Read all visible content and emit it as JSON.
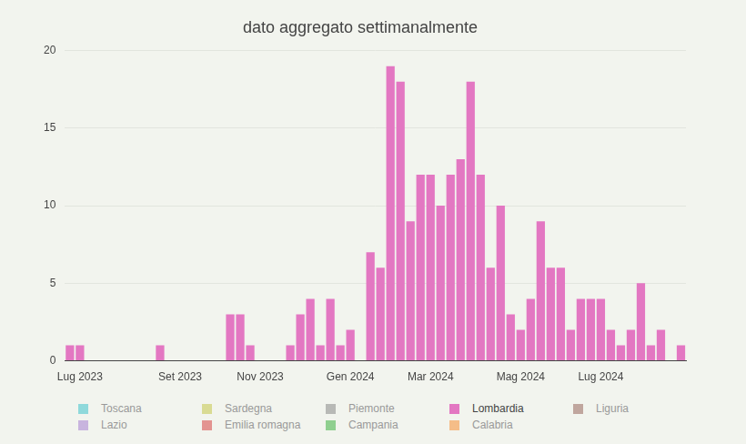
{
  "chart_data": {
    "type": "bar",
    "title": "dato aggregato settimanalmente",
    "categories": [
      null,
      "Lug 2023",
      null,
      null,
      null,
      null,
      null,
      null,
      null,
      null,
      null,
      "Set 2023",
      null,
      null,
      null,
      null,
      null,
      null,
      null,
      "Nov 2023",
      null,
      null,
      null,
      null,
      null,
      null,
      null,
      null,
      "Gen 2024",
      null,
      null,
      null,
      null,
      null,
      null,
      null,
      "Mar 2024",
      null,
      null,
      null,
      null,
      null,
      null,
      null,
      null,
      "Mag 2024",
      null,
      null,
      null,
      null,
      null,
      null,
      null,
      "Lug 2024",
      null,
      null,
      null,
      null,
      null,
      null,
      null,
      null
    ],
    "series": [
      {
        "name": "Toscana",
        "color": "#8fd9db",
        "values": [
          0,
          0,
          0,
          0,
          0,
          0,
          0,
          0,
          0,
          0,
          0,
          0,
          0,
          0,
          0,
          0,
          0,
          0,
          0,
          0,
          0,
          0,
          0,
          0,
          0,
          0,
          0,
          0,
          0,
          0,
          0,
          0,
          0,
          0,
          0,
          0,
          0,
          0,
          0,
          0,
          0,
          0,
          0,
          0,
          0,
          0,
          0,
          0,
          0,
          0,
          0,
          0,
          0,
          0,
          0,
          0,
          0,
          0,
          0,
          0,
          0,
          0
        ]
      },
      {
        "name": "Sardegna",
        "color": "#d9db93",
        "values": [
          0,
          0,
          0,
          0,
          0,
          0,
          0,
          0,
          0,
          0,
          0,
          0,
          0,
          0,
          0,
          0,
          0,
          0,
          0,
          0,
          0,
          0,
          0,
          0,
          0,
          0,
          0,
          0,
          0,
          0,
          0,
          0,
          0,
          0,
          0,
          0,
          0,
          0,
          0,
          0,
          0,
          0,
          0,
          0,
          0,
          0,
          0,
          0,
          0,
          0,
          0,
          0,
          0,
          0,
          0,
          0,
          0,
          0,
          0,
          0,
          0,
          0
        ]
      },
      {
        "name": "Piemonte",
        "color": "#b8b9b6",
        "values": [
          0,
          0,
          0,
          0,
          0,
          0,
          0,
          0,
          0,
          0,
          0,
          0,
          0,
          0,
          0,
          0,
          0,
          0,
          0,
          0,
          0,
          0,
          0,
          0,
          0,
          0,
          0,
          0,
          0,
          0,
          0,
          0,
          0,
          0,
          0,
          0,
          0,
          0,
          0,
          0,
          0,
          0,
          0,
          0,
          0,
          0,
          0,
          0,
          0,
          0,
          0,
          0,
          0,
          0,
          0,
          0,
          0,
          0,
          0,
          0,
          0,
          0
        ]
      },
      {
        "name": "Lombardia",
        "color": "#e377c2",
        "values": [
          1,
          1,
          0,
          0,
          0,
          0,
          0,
          0,
          0,
          1,
          0,
          0,
          0,
          0,
          0,
          0,
          3,
          3,
          1,
          0,
          0,
          0,
          1,
          3,
          4,
          1,
          4,
          1,
          2,
          0,
          7,
          6,
          19,
          18,
          9,
          12,
          12,
          10,
          12,
          13,
          18,
          12,
          6,
          10,
          3,
          2,
          4,
          9,
          6,
          6,
          2,
          4,
          4,
          4,
          2,
          1,
          2,
          5,
          1,
          2,
          0,
          1
        ]
      },
      {
        "name": "Liguria",
        "color": "#c0a69e",
        "values": [
          0,
          0,
          0,
          0,
          0,
          0,
          0,
          0,
          0,
          0,
          0,
          0,
          0,
          0,
          0,
          0,
          0,
          0,
          0,
          0,
          0,
          0,
          0,
          0,
          0,
          0,
          0,
          0,
          0,
          0,
          0,
          0,
          0,
          0,
          0,
          0,
          0,
          0,
          0,
          0,
          0,
          0,
          0,
          0,
          0,
          0,
          0,
          0,
          0,
          0,
          0,
          0,
          0,
          0,
          0,
          0,
          0,
          0,
          0,
          0,
          0,
          0
        ]
      },
      {
        "name": "Lazio",
        "color": "#c8b4de",
        "values": [
          0,
          0,
          0,
          0,
          0,
          0,
          0,
          0,
          0,
          0,
          0,
          0,
          0,
          0,
          0,
          0,
          0,
          0,
          0,
          0,
          0,
          0,
          0,
          0,
          0,
          0,
          0,
          0,
          0,
          0,
          0,
          0,
          0,
          0,
          0,
          0,
          0,
          0,
          0,
          0,
          0,
          0,
          0,
          0,
          0,
          0,
          0,
          0,
          0,
          0,
          0,
          0,
          0,
          0,
          0,
          0,
          0,
          0,
          0,
          0,
          0,
          0
        ]
      },
      {
        "name": "Emilia romagna",
        "color": "#e39390",
        "values": [
          0,
          0,
          0,
          0,
          0,
          0,
          0,
          0,
          0,
          0,
          0,
          0,
          0,
          0,
          0,
          0,
          0,
          0,
          0,
          0,
          0,
          0,
          0,
          0,
          0,
          0,
          0,
          0,
          0,
          0,
          0,
          0,
          0,
          0,
          0,
          0,
          0,
          0,
          0,
          0,
          0,
          0,
          0,
          0,
          0,
          0,
          0,
          0,
          0,
          0,
          0,
          0,
          0,
          0,
          0,
          0,
          0,
          0,
          0,
          0,
          0,
          0
        ]
      },
      {
        "name": "Campania",
        "color": "#8fcf8f",
        "values": [
          0,
          0,
          0,
          0,
          0,
          0,
          0,
          0,
          0,
          0,
          0,
          0,
          0,
          0,
          0,
          0,
          0,
          0,
          0,
          0,
          0,
          0,
          0,
          0,
          0,
          0,
          0,
          0,
          0,
          0,
          0,
          0,
          0,
          0,
          0,
          0,
          0,
          0,
          0,
          0,
          0,
          0,
          0,
          0,
          0,
          0,
          0,
          0,
          0,
          0,
          0,
          0,
          0,
          0,
          0,
          0,
          0,
          0,
          0,
          0,
          0,
          0
        ]
      },
      {
        "name": "Calabria",
        "color": "#f5bd88",
        "values": [
          0,
          0,
          0,
          0,
          0,
          0,
          0,
          0,
          0,
          0,
          0,
          0,
          0,
          0,
          0,
          0,
          0,
          0,
          0,
          0,
          0,
          0,
          0,
          0,
          0,
          0,
          0,
          0,
          0,
          0,
          0,
          0,
          0,
          0,
          0,
          0,
          0,
          0,
          0,
          0,
          0,
          0,
          0,
          0,
          0,
          0,
          0,
          0,
          0,
          0,
          0,
          0,
          0,
          0,
          0,
          0,
          0,
          0,
          0,
          0,
          0,
          0
        ]
      }
    ],
    "stacked": true,
    "ylim": [
      0,
      20
    ],
    "yticks": [
      0,
      5,
      10,
      15,
      20
    ],
    "grid": true
  }
}
